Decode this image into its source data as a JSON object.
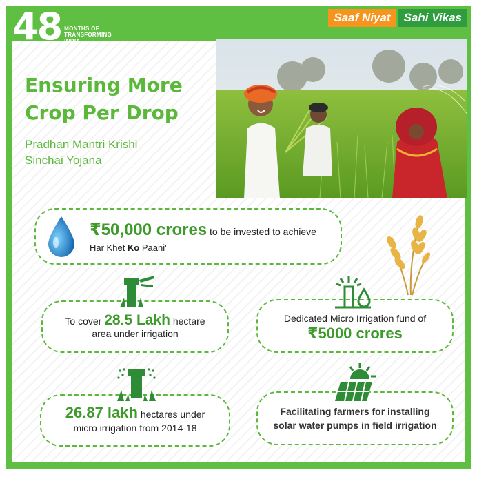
{
  "header": {
    "badge_number": "48",
    "badge_lines": [
      "MONTHS OF",
      "TRANSFORMING",
      "INDIA"
    ],
    "slogan_left": "Saaf Niyat",
    "slogan_right": "Sahi Vikas"
  },
  "title": {
    "line1": "Ensuring More",
    "line2": "Crop Per Drop",
    "sub1": "Pradhan Mantri Krishi",
    "sub2": "Sinchai Yojana"
  },
  "facts": {
    "invest_amount": "₹50,000 crores",
    "invest_rest": "to be invested to achieve",
    "invest_line2_a": "Har Khet ",
    "invest_line2_b": "Ko",
    "invest_line2_c": " Paani'",
    "cover_pre": "To cover ",
    "cover_amount": "28.5 Lakh",
    "cover_post": " hectare",
    "cover_line2": "area under irrigation",
    "fund_line1": "Dedicated Micro Irrigation fund of",
    "fund_amount": "₹5000 crores",
    "micro_amount": "26.87 lakh",
    "micro_post": " hectares under",
    "micro_line2": "micro irrigation from 2014-18",
    "solar_line1": "Facilitating farmers for installing",
    "solar_line2": "solar water pumps in field irrigation"
  },
  "colors": {
    "brand_green": "#5fbf42",
    "saffron": "#f7941d",
    "dark_green": "#2e9c3f"
  },
  "icons": [
    "water-drop-icon",
    "sprinkler-icon",
    "micro-irrigation-icon",
    "wheat-icon",
    "drip-sprinkler-icon",
    "solar-panel-icon"
  ]
}
